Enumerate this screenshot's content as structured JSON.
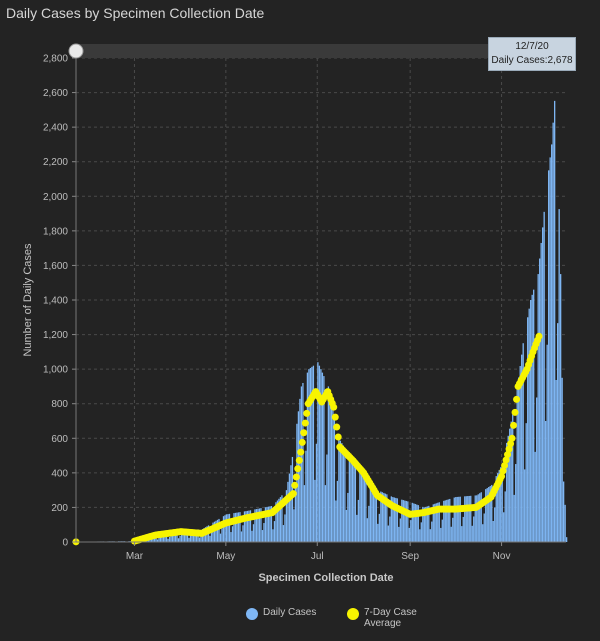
{
  "title": "Daily Cases by Specimen Collection Date",
  "colors": {
    "background": "#232323",
    "daily_bar": "#7fb7f5",
    "avg_dot": "#f7f400",
    "grid": "#4a4a4a",
    "slider": "#3a3a3a"
  },
  "tooltip": {
    "date": "12/7/20",
    "text": "Daily Cases:2,678"
  },
  "legend": {
    "daily": "Daily Cases",
    "avg": "7-Day Case Average"
  },
  "chart_data": {
    "type": "bar",
    "title": "Daily Cases by Specimen Collection Date",
    "xlabel": "Specimen Collection Date",
    "ylabel": "Number of Daily Cases",
    "x_range": [
      "2020-01-22",
      "2020-12-14"
    ],
    "ylim": [
      0,
      2800
    ],
    "yticks": [
      0,
      200,
      400,
      600,
      800,
      1000,
      1200,
      1400,
      1600,
      1800,
      2000,
      2200,
      2400,
      2600,
      2800
    ],
    "ytick_labels": [
      "0",
      "200",
      "400",
      "600",
      "800",
      "1,000",
      "1,200",
      "1,400",
      "1,600",
      "1,800",
      "2,000",
      "2,200",
      "2,400",
      "2,600",
      "2,800"
    ],
    "xticks": [
      {
        "date": "2020-03-01",
        "label": "Mar"
      },
      {
        "date": "2020-05-01",
        "label": "May"
      },
      {
        "date": "2020-07-01",
        "label": "Jul"
      },
      {
        "date": "2020-09-01",
        "label": "Sep"
      },
      {
        "date": "2020-11-01",
        "label": "Nov"
      }
    ],
    "grid": true,
    "legend_position": "bottom",
    "series": [
      {
        "name": "Daily Cases",
        "kind": "bar",
        "points": [
          [
            "2020-01-22",
            2
          ],
          [
            "2020-03-01",
            5
          ],
          [
            "2020-03-15",
            40
          ],
          [
            "2020-04-01",
            65
          ],
          [
            "2020-04-15",
            75
          ],
          [
            "2020-05-01",
            160
          ],
          [
            "2020-05-15",
            180
          ],
          [
            "2020-06-01",
            210
          ],
          [
            "2020-06-10",
            300
          ],
          [
            "2020-06-15",
            540
          ],
          [
            "2020-06-20",
            900
          ],
          [
            "2020-06-25",
            1000
          ],
          [
            "2020-07-01",
            1040
          ],
          [
            "2020-07-05",
            960
          ],
          [
            "2020-07-08",
            900
          ],
          [
            "2020-07-15",
            600
          ],
          [
            "2020-07-25",
            460
          ],
          [
            "2020-08-01",
            420
          ],
          [
            "2020-08-10",
            300
          ],
          [
            "2020-08-20",
            260
          ],
          [
            "2020-09-01",
            230
          ],
          [
            "2020-09-10",
            200
          ],
          [
            "2020-09-20",
            230
          ],
          [
            "2020-10-01",
            260
          ],
          [
            "2020-10-15",
            270
          ],
          [
            "2020-10-25",
            330
          ],
          [
            "2020-11-01",
            450
          ],
          [
            "2020-11-10",
            820
          ],
          [
            "2020-11-15",
            1150
          ],
          [
            "2020-11-20",
            1400
          ],
          [
            "2020-11-25",
            1550
          ],
          [
            "2020-11-30",
            2000
          ],
          [
            "2020-12-04",
            2300
          ],
          [
            "2020-12-07",
            2678
          ],
          [
            "2020-12-10",
            1550
          ],
          [
            "2020-12-12",
            350
          ],
          [
            "2020-12-14",
            80
          ]
        ]
      },
      {
        "name": "7-Day Case Average",
        "kind": "dots",
        "points": [
          [
            "2020-01-22",
            1
          ],
          [
            "2020-03-01",
            5
          ],
          [
            "2020-03-15",
            40
          ],
          [
            "2020-04-01",
            60
          ],
          [
            "2020-04-15",
            50
          ],
          [
            "2020-05-01",
            110
          ],
          [
            "2020-05-15",
            140
          ],
          [
            "2020-06-01",
            170
          ],
          [
            "2020-06-15",
            280
          ],
          [
            "2020-06-20",
            520
          ],
          [
            "2020-06-25",
            800
          ],
          [
            "2020-06-30",
            870
          ],
          [
            "2020-07-04",
            810
          ],
          [
            "2020-07-08",
            870
          ],
          [
            "2020-07-12",
            780
          ],
          [
            "2020-07-16",
            550
          ],
          [
            "2020-07-25",
            470
          ],
          [
            "2020-08-01",
            400
          ],
          [
            "2020-08-10",
            270
          ],
          [
            "2020-08-20",
            210
          ],
          [
            "2020-09-01",
            160
          ],
          [
            "2020-09-10",
            170
          ],
          [
            "2020-09-20",
            190
          ],
          [
            "2020-10-01",
            190
          ],
          [
            "2020-10-15",
            200
          ],
          [
            "2020-10-25",
            260
          ],
          [
            "2020-11-01",
            380
          ],
          [
            "2020-11-08",
            600
          ],
          [
            "2020-11-12",
            900
          ],
          [
            "2020-11-18",
            1000
          ],
          [
            "2020-11-22",
            1100
          ],
          [
            "2020-11-26",
            1190
          ]
        ]
      }
    ]
  }
}
